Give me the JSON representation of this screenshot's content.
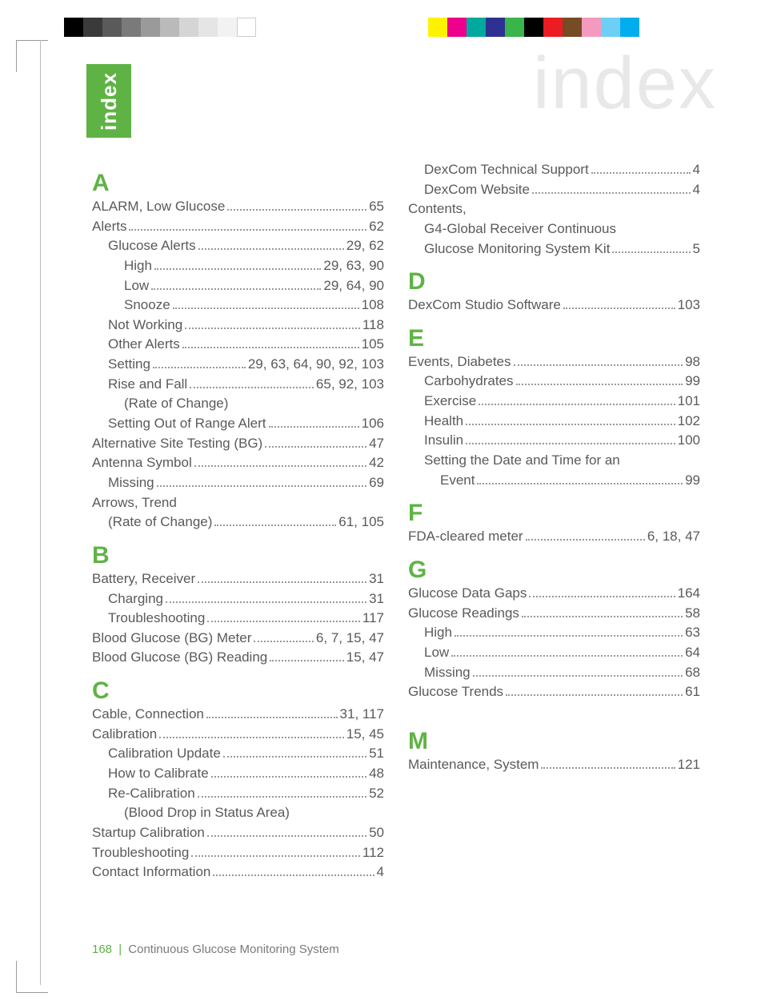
{
  "accent_color": "#5fb345",
  "title_watermark": "index",
  "side_tab": "index",
  "footer": {
    "page_number": "168",
    "book_title": "Continuous Glucose Monitoring System"
  },
  "registration_bars": {
    "left_gray": [
      "#000000",
      "#3a3a3a",
      "#5a5a5a",
      "#7a7a7a",
      "#9a9a9a",
      "#bababa",
      "#d5d5d5",
      "#e5e5e5",
      "#f2f2f2",
      "#ffffff"
    ],
    "right_colors": [
      "#fff200",
      "#ec008c",
      "#00a99d",
      "#2e3192",
      "#39b54a",
      "#000000",
      "#ed1c24",
      "#754c24",
      "#f49ac1",
      "#6dcff6",
      "#00aeef"
    ]
  },
  "columns": [
    [
      {
        "type": "letter",
        "text": "A"
      },
      {
        "type": "entry",
        "indent": 0,
        "label": "ALARM, Low Glucose",
        "page": "65"
      },
      {
        "type": "entry",
        "indent": 0,
        "label": "Alerts",
        "page": "62"
      },
      {
        "type": "entry",
        "indent": 1,
        "label": "Glucose Alerts",
        "page": "29, 62"
      },
      {
        "type": "entry",
        "indent": 2,
        "label": "High",
        "page": "29, 63, 90"
      },
      {
        "type": "entry",
        "indent": 2,
        "label": "Low",
        "page": "29, 64, 90"
      },
      {
        "type": "entry",
        "indent": 2,
        "label": "Snooze",
        "page": "108"
      },
      {
        "type": "entry",
        "indent": 1,
        "label": "Not Working",
        "page": "118"
      },
      {
        "type": "entry",
        "indent": 1,
        "label": "Other Alerts",
        "page": "105"
      },
      {
        "type": "entry",
        "indent": 1,
        "label": "Setting",
        "page": "29, 63, 64, 90, 92, 103"
      },
      {
        "type": "entry",
        "indent": 1,
        "label": "Rise and Fall ",
        "page": "65, 92, 103"
      },
      {
        "type": "note",
        "indent": 2,
        "label": "(Rate of Change)"
      },
      {
        "type": "entry",
        "indent": 1,
        "label": "Setting Out of Range Alert",
        "page": "106"
      },
      {
        "type": "entry",
        "indent": 0,
        "label": "Alternative Site Testing (BG)",
        "page": "47"
      },
      {
        "type": "entry",
        "indent": 0,
        "label": "Antenna Symbol",
        "page": "42"
      },
      {
        "type": "entry",
        "indent": 1,
        "label": "Missing ",
        "page": "69"
      },
      {
        "type": "note",
        "indent": 0,
        "label": "Arrows, Trend"
      },
      {
        "type": "entry",
        "indent": 1,
        "label": "(Rate of Change)",
        "page": "61, 105"
      },
      {
        "type": "letter",
        "text": "B"
      },
      {
        "type": "entry",
        "indent": 0,
        "label": "Battery, Receiver",
        "page": "31"
      },
      {
        "type": "entry",
        "indent": 1,
        "label": "Charging",
        "page": "31"
      },
      {
        "type": "entry",
        "indent": 1,
        "label": "Troubleshooting",
        "page": "117"
      },
      {
        "type": "entry",
        "indent": 0,
        "label": "Blood Glucose (BG) Meter",
        "page": "6, 7, 15, 47"
      },
      {
        "type": "entry",
        "indent": 0,
        "label": "Blood Glucose (BG) Reading",
        "page": "15, 47"
      },
      {
        "type": "letter",
        "text": "C"
      },
      {
        "type": "entry",
        "indent": 0,
        "label": "Cable, Connection",
        "page": "31, 117"
      },
      {
        "type": "entry",
        "indent": 0,
        "label": "Calibration",
        "page": "15, 45"
      },
      {
        "type": "entry",
        "indent": 1,
        "label": "Calibration Update",
        "page": "51"
      },
      {
        "type": "entry",
        "indent": 1,
        "label": "How to Calibrate",
        "page": "48"
      },
      {
        "type": "entry",
        "indent": 1,
        "label": "Re-Calibration ",
        "page": "52"
      },
      {
        "type": "note",
        "indent": 2,
        "label": "(Blood Drop in Status Area)"
      },
      {
        "type": "entry",
        "indent": 0,
        "label": "Startup Calibration",
        "page": "50"
      },
      {
        "type": "entry",
        "indent": 0,
        "label": "Troubleshooting",
        "page": "112"
      },
      {
        "type": "entry",
        "indent": 0,
        "label": "Contact Information",
        "page": "4"
      }
    ],
    [
      {
        "type": "entry",
        "indent": 1,
        "label": "DexCom Technical Support",
        "page": "4"
      },
      {
        "type": "entry",
        "indent": 1,
        "label": "DexCom Website",
        "page": "4"
      },
      {
        "type": "note",
        "indent": 0,
        "label": "Contents,"
      },
      {
        "type": "note",
        "indent": 1,
        "label": "G4-Global Receiver Continuous",
        "wrap": true
      },
      {
        "type": "entry",
        "indent": 1,
        "label": "Glucose Monitoring System Kit",
        "page": "5"
      },
      {
        "type": "letter",
        "text": "D"
      },
      {
        "type": "entry",
        "indent": 0,
        "label": "DexCom Studio Software",
        "page": "103"
      },
      {
        "type": "letter",
        "text": "E"
      },
      {
        "type": "entry",
        "indent": 0,
        "label": "Events, Diabetes",
        "page": "98"
      },
      {
        "type": "entry",
        "indent": 1,
        "label": "Carbohydrates",
        "page": "99"
      },
      {
        "type": "entry",
        "indent": 1,
        "label": "Exercise",
        "page": "101"
      },
      {
        "type": "entry",
        "indent": 1,
        "label": "Health",
        "page": "102"
      },
      {
        "type": "entry",
        "indent": 1,
        "label": "Insulin",
        "page": "100"
      },
      {
        "type": "note",
        "indent": 1,
        "label": "Setting the Date and Time for an",
        "wrap": true
      },
      {
        "type": "entry",
        "indent": 2,
        "label": "Event ",
        "page": "99"
      },
      {
        "type": "letter",
        "text": "F"
      },
      {
        "type": "entry",
        "indent": 0,
        "label": "FDA-cleared meter",
        "page": "6, 18, 47"
      },
      {
        "type": "letter",
        "text": "G"
      },
      {
        "type": "entry",
        "indent": 0,
        "label": "Glucose Data Gaps",
        "page": "164"
      },
      {
        "type": "entry",
        "indent": 0,
        "label": "Glucose Readings",
        "page": "58"
      },
      {
        "type": "entry",
        "indent": 1,
        "label": "High",
        "page": "63"
      },
      {
        "type": "entry",
        "indent": 1,
        "label": "Low",
        "page": "64"
      },
      {
        "type": "entry",
        "indent": 1,
        "label": "Missing",
        "page": "68"
      },
      {
        "type": "entry",
        "indent": 0,
        "label": "Glucose Trends",
        "page": "61"
      },
      {
        "type": "spacer"
      },
      {
        "type": "letter",
        "text": "M"
      },
      {
        "type": "entry",
        "indent": 0,
        "label": "Maintenance, System",
        "page": "121"
      }
    ]
  ]
}
